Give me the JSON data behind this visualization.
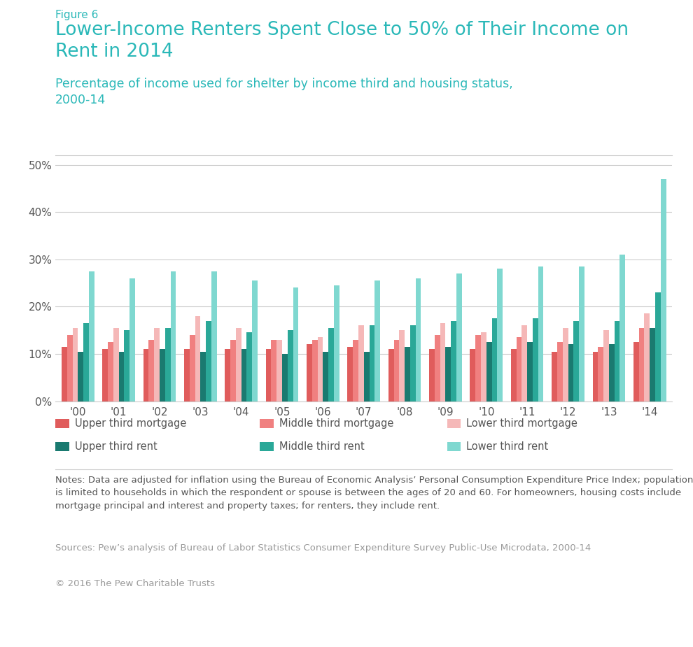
{
  "years": [
    "'00",
    "'01",
    "'02",
    "'03",
    "'04",
    "'05",
    "'06",
    "'07",
    "'08",
    "'09",
    "'10",
    "'11",
    "'12",
    "'13",
    "'14"
  ],
  "upper_third_mortgage": [
    11.5,
    11.0,
    11.0,
    11.0,
    11.0,
    11.0,
    12.0,
    11.5,
    11.0,
    11.0,
    11.0,
    11.0,
    10.5,
    10.5,
    12.5
  ],
  "middle_third_mortgage": [
    14.0,
    12.5,
    13.0,
    14.0,
    13.0,
    13.0,
    13.0,
    13.0,
    13.0,
    14.0,
    14.0,
    13.5,
    12.5,
    11.5,
    15.5
  ],
  "lower_third_mortgage": [
    15.5,
    15.5,
    15.5,
    18.0,
    15.5,
    13.0,
    13.5,
    16.0,
    15.0,
    16.5,
    14.5,
    16.0,
    15.5,
    15.0,
    18.5
  ],
  "upper_third_rent": [
    10.5,
    10.5,
    11.0,
    10.5,
    11.0,
    10.0,
    10.5,
    10.5,
    11.5,
    11.5,
    12.5,
    12.5,
    12.0,
    12.0,
    15.5
  ],
  "middle_third_rent": [
    16.5,
    15.0,
    15.5,
    17.0,
    14.5,
    15.0,
    15.5,
    16.0,
    16.0,
    17.0,
    17.5,
    17.5,
    17.0,
    17.0,
    23.0
  ],
  "lower_third_rent": [
    27.5,
    26.0,
    27.5,
    27.5,
    25.5,
    24.0,
    24.5,
    25.5,
    26.0,
    27.0,
    28.0,
    28.5,
    28.5,
    31.0,
    47.0
  ],
  "colors": {
    "upper_third_mortgage": "#e05c5c",
    "middle_third_mortgage": "#f08080",
    "lower_third_mortgage": "#f5b8b8",
    "upper_third_rent": "#1a7a70",
    "middle_third_rent": "#2aa898",
    "lower_third_rent": "#7fd8d0"
  },
  "figure6_label": "Figure 6",
  "title": "Lower-Income Renters Spent Close to 50% of Their Income on\nRent in 2014",
  "subtitle": "Percentage of income used for shelter by income third and housing status,\n2000-14",
  "legend_labels": [
    "Upper third mortgage",
    "Middle third mortgage",
    "Lower third mortgage",
    "Upper third rent",
    "Middle third rent",
    "Lower third rent"
  ],
  "notes_text": "Notes: Data are adjusted for inflation using the Bureau of Economic Analysis’ Personal Consumption Expenditure Price Index; population\nis limited to households in which the respondent or spouse is between the ages of 20 and 60. For homeowners, housing costs include\nmortgage principal and interest and property taxes; for renters, they include rent.",
  "sources_text": "Sources: Pew’s analysis of Bureau of Labor Statistics Consumer Expenditure Survey Public-Use Microdata, 2000-14",
  "copyright_text": "© 2016 The Pew Charitable Trusts",
  "ylim": [
    0,
    52
  ],
  "yticks": [
    0,
    10,
    20,
    30,
    40,
    50
  ],
  "background_color": "#ffffff",
  "teal_color": "#2ab8b8",
  "gray_text": "#999999",
  "dark_text": "#555555"
}
